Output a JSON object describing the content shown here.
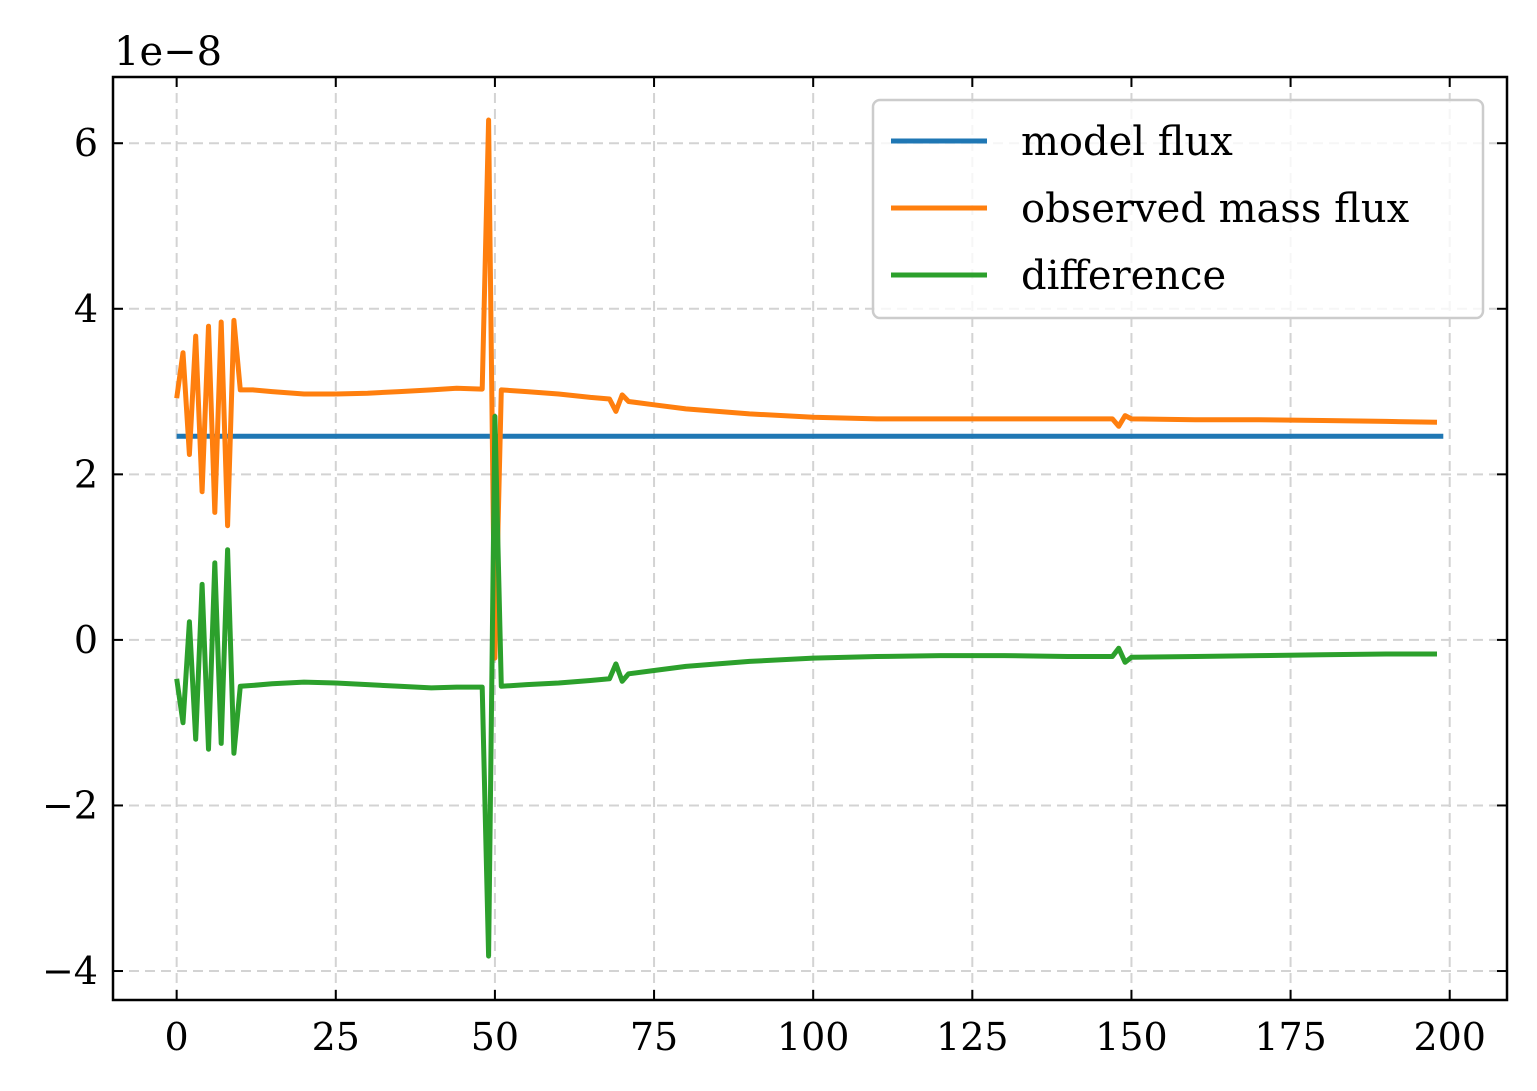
{
  "chart_data": {
    "type": "line",
    "title": "",
    "xlabel": "",
    "ylabel": "",
    "y_offset_label": "1e−8",
    "xlim": [
      -10,
      209
    ],
    "ylim": [
      -4.35,
      6.8
    ],
    "xticks": [
      0,
      25,
      50,
      75,
      100,
      125,
      150,
      175,
      200
    ],
    "xtick_labels": [
      "0",
      "25",
      "50",
      "75",
      "100",
      "125",
      "150",
      "175",
      "200"
    ],
    "yticks": [
      -4,
      -2,
      0,
      2,
      4,
      6
    ],
    "ytick_labels": [
      "−4",
      "−2",
      "0",
      "2",
      "4",
      "6"
    ],
    "grid": true,
    "legend_position": "upper-right",
    "series": [
      {
        "name": "model flux",
        "color": "#1f77b4",
        "x": [
          0,
          199
        ],
        "y": [
          2.46,
          2.46
        ]
      },
      {
        "name": "observed mass flux",
        "color": "#ff7f0e",
        "x": [
          0,
          1,
          2,
          3,
          4,
          5,
          6,
          7,
          8,
          9,
          10,
          12,
          15,
          20,
          25,
          30,
          35,
          40,
          44,
          48,
          49,
          50,
          51,
          55,
          60,
          65,
          68,
          69,
          70,
          71,
          75,
          80,
          90,
          100,
          110,
          120,
          130,
          140,
          147,
          148,
          149,
          150,
          160,
          170,
          180,
          190,
          198
        ],
        "y": [
          2.92,
          3.47,
          2.24,
          3.67,
          1.79,
          3.79,
          1.54,
          3.84,
          1.38,
          3.86,
          3.02,
          3.02,
          3.0,
          2.97,
          2.97,
          2.98,
          3.0,
          3.02,
          3.04,
          3.03,
          6.28,
          -0.22,
          3.02,
          3.0,
          2.97,
          2.93,
          2.91,
          2.76,
          2.96,
          2.88,
          2.84,
          2.79,
          2.73,
          2.69,
          2.67,
          2.67,
          2.67,
          2.67,
          2.67,
          2.58,
          2.71,
          2.67,
          2.66,
          2.66,
          2.65,
          2.64,
          2.63
        ]
      },
      {
        "name": "difference",
        "color": "#2ca02c",
        "x": [
          0,
          1,
          2,
          3,
          4,
          5,
          6,
          7,
          8,
          9,
          10,
          12,
          15,
          20,
          25,
          30,
          35,
          40,
          44,
          48,
          49,
          50,
          51,
          55,
          60,
          65,
          68,
          69,
          70,
          71,
          75,
          80,
          90,
          100,
          110,
          120,
          130,
          140,
          147,
          148,
          149,
          150,
          160,
          170,
          180,
          190,
          198
        ],
        "y": [
          -0.47,
          -1.0,
          0.22,
          -1.2,
          0.67,
          -1.32,
          0.93,
          -1.25,
          1.09,
          -1.37,
          -0.56,
          -0.55,
          -0.53,
          -0.51,
          -0.52,
          -0.54,
          -0.56,
          -0.58,
          -0.57,
          -0.57,
          -3.82,
          2.7,
          -0.56,
          -0.54,
          -0.52,
          -0.49,
          -0.47,
          -0.29,
          -0.5,
          -0.41,
          -0.37,
          -0.32,
          -0.26,
          -0.22,
          -0.2,
          -0.19,
          -0.19,
          -0.2,
          -0.2,
          -0.1,
          -0.27,
          -0.21,
          -0.2,
          -0.19,
          -0.18,
          -0.17,
          -0.17
        ]
      }
    ]
  }
}
